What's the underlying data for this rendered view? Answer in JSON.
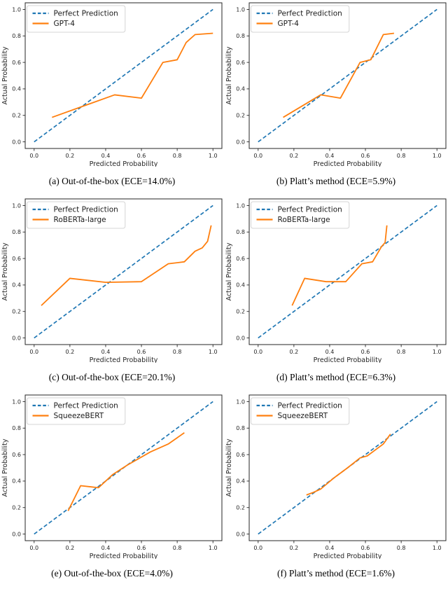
{
  "figure": {
    "name": "Calibration reliability diagrams",
    "colors": {
      "perfect_prediction": "#1f77b4",
      "model_line": "#ff7f0e",
      "axis": "#262626",
      "legend_border": "#d4d4d4"
    },
    "legend_perfect_label": "Perfect Prediction"
  },
  "chart_data": [
    {
      "type": "line",
      "panel": "(a)",
      "caption": "(a) Out-of-the-box (ECE=14.0%)",
      "model": "GPT-4",
      "ece_percent": 14.0,
      "xlabel": "Predicted Probability",
      "ylabel": "Actual Probability",
      "xlim": [
        0,
        1
      ],
      "ylim": [
        0,
        1
      ],
      "xticks": [
        0,
        0.2,
        0.4,
        0.6,
        0.8,
        1.0
      ],
      "yticks": [
        0,
        0.2,
        0.4,
        0.6,
        0.8,
        1.0
      ],
      "legend_position": "upper left",
      "grid": false,
      "series": [
        {
          "name": "Perfect Prediction",
          "style": "dashed",
          "color": "#1f77b4",
          "x": [
            0,
            1
          ],
          "y": [
            0,
            1
          ]
        },
        {
          "name": "GPT-4",
          "style": "solid",
          "color": "#ff7f0e",
          "x": [
            0.1,
            0.45,
            0.6,
            0.72,
            0.8,
            0.85,
            0.9,
            1.0
          ],
          "y": [
            0.185,
            0.355,
            0.33,
            0.6,
            0.62,
            0.75,
            0.81,
            0.82
          ]
        }
      ]
    },
    {
      "type": "line",
      "panel": "(b)",
      "caption": "(b) Platt’s method (ECE=5.9%)",
      "model": "GPT-4",
      "ece_percent": 5.9,
      "xlabel": "Predicted Probability",
      "ylabel": "Actual Probability",
      "xlim": [
        0,
        1
      ],
      "ylim": [
        0,
        1
      ],
      "xticks": [
        0,
        0.2,
        0.4,
        0.6,
        0.8,
        1.0
      ],
      "yticks": [
        0,
        0.2,
        0.4,
        0.6,
        0.8,
        1.0
      ],
      "legend_position": "upper left",
      "grid": false,
      "series": [
        {
          "name": "Perfect Prediction",
          "style": "dashed",
          "color": "#1f77b4",
          "x": [
            0,
            1
          ],
          "y": [
            0,
            1
          ]
        },
        {
          "name": "GPT-4",
          "style": "solid",
          "color": "#ff7f0e",
          "x": [
            0.14,
            0.35,
            0.46,
            0.57,
            0.63,
            0.7,
            0.76
          ],
          "y": [
            0.185,
            0.355,
            0.33,
            0.6,
            0.62,
            0.81,
            0.82
          ]
        }
      ]
    },
    {
      "type": "line",
      "panel": "(c)",
      "caption": "(c) Out-of-the-box (ECE=20.1%)",
      "model": "RoBERTa-large",
      "ece_percent": 20.1,
      "xlabel": "Predicted Probability",
      "ylabel": "Actual Probability",
      "xlim": [
        0,
        1
      ],
      "ylim": [
        0,
        1
      ],
      "xticks": [
        0,
        0.2,
        0.4,
        0.6,
        0.8,
        1.0
      ],
      "yticks": [
        0,
        0.2,
        0.4,
        0.6,
        0.8,
        1.0
      ],
      "legend_position": "upper left",
      "grid": false,
      "series": [
        {
          "name": "Perfect Prediction",
          "style": "dashed",
          "color": "#1f77b4",
          "x": [
            0,
            1
          ],
          "y": [
            0,
            1
          ]
        },
        {
          "name": "RoBERTa-large",
          "style": "solid",
          "color": "#ff7f0e",
          "x": [
            0.04,
            0.2,
            0.4,
            0.6,
            0.75,
            0.84,
            0.9,
            0.94,
            0.97,
            0.99
          ],
          "y": [
            0.245,
            0.45,
            0.42,
            0.425,
            0.56,
            0.575,
            0.655,
            0.68,
            0.73,
            0.85
          ]
        }
      ]
    },
    {
      "type": "line",
      "panel": "(d)",
      "caption": "(d) Platt’s method (ECE=6.3%)",
      "model": "RoBERTa-large",
      "ece_percent": 6.3,
      "xlabel": "Predicted Probability",
      "ylabel": "Actual Probability",
      "xlim": [
        0,
        1
      ],
      "ylim": [
        0,
        1
      ],
      "xticks": [
        0,
        0.2,
        0.4,
        0.6,
        0.8,
        1.0
      ],
      "yticks": [
        0,
        0.2,
        0.4,
        0.6,
        0.8,
        1.0
      ],
      "legend_position": "upper left",
      "grid": false,
      "series": [
        {
          "name": "Perfect Prediction",
          "style": "dashed",
          "color": "#1f77b4",
          "x": [
            0,
            1
          ],
          "y": [
            0,
            1
          ]
        },
        {
          "name": "RoBERTa-large",
          "style": "solid",
          "color": "#ff7f0e",
          "x": [
            0.19,
            0.26,
            0.38,
            0.49,
            0.58,
            0.64,
            0.69,
            0.71,
            0.72
          ],
          "y": [
            0.245,
            0.45,
            0.425,
            0.425,
            0.56,
            0.575,
            0.69,
            0.72,
            0.85
          ]
        }
      ]
    },
    {
      "type": "line",
      "panel": "(e)",
      "caption": "(e) Out-of-the-box (ECE=4.0%)",
      "model": "SqueezeBERT",
      "ece_percent": 4.0,
      "xlabel": "Predicted Probability",
      "ylabel": "Actual Probability",
      "xlim": [
        0,
        1
      ],
      "ylim": [
        0,
        1
      ],
      "xticks": [
        0,
        0.2,
        0.4,
        0.6,
        0.8,
        1.0
      ],
      "yticks": [
        0,
        0.2,
        0.4,
        0.6,
        0.8,
        1.0
      ],
      "legend_position": "upper left",
      "grid": false,
      "series": [
        {
          "name": "Perfect Prediction",
          "style": "dashed",
          "color": "#1f77b4",
          "x": [
            0,
            1
          ],
          "y": [
            0,
            1
          ]
        },
        {
          "name": "SqueezeBERT",
          "style": "solid",
          "color": "#ff7f0e",
          "x": [
            0.19,
            0.26,
            0.36,
            0.44,
            0.52,
            0.65,
            0.75,
            0.84
          ],
          "y": [
            0.175,
            0.365,
            0.35,
            0.45,
            0.52,
            0.62,
            0.68,
            0.765
          ]
        }
      ]
    },
    {
      "type": "line",
      "panel": "(f)",
      "caption": "(f) Platt’s method (ECE=1.6%)",
      "model": "SqueezeBERT",
      "ece_percent": 1.6,
      "xlabel": "Predicted Probability",
      "ylabel": "Actual Probability",
      "xlim": [
        0,
        1
      ],
      "ylim": [
        0,
        1
      ],
      "xticks": [
        0,
        0.2,
        0.4,
        0.6,
        0.8,
        1.0
      ],
      "yticks": [
        0,
        0.2,
        0.4,
        0.6,
        0.8,
        1.0
      ],
      "legend_position": "upper left",
      "grid": false,
      "series": [
        {
          "name": "Perfect Prediction",
          "style": "dashed",
          "color": "#1f77b4",
          "x": [
            0,
            1
          ],
          "y": [
            0,
            1
          ]
        },
        {
          "name": "SqueezeBERT",
          "style": "solid",
          "color": "#ff7f0e",
          "x": [
            0.27,
            0.31,
            0.35,
            0.42,
            0.5,
            0.57,
            0.61,
            0.65,
            0.7,
            0.74
          ],
          "y": [
            0.295,
            0.315,
            0.34,
            0.42,
            0.5,
            0.575,
            0.59,
            0.63,
            0.68,
            0.755
          ]
        }
      ]
    }
  ]
}
